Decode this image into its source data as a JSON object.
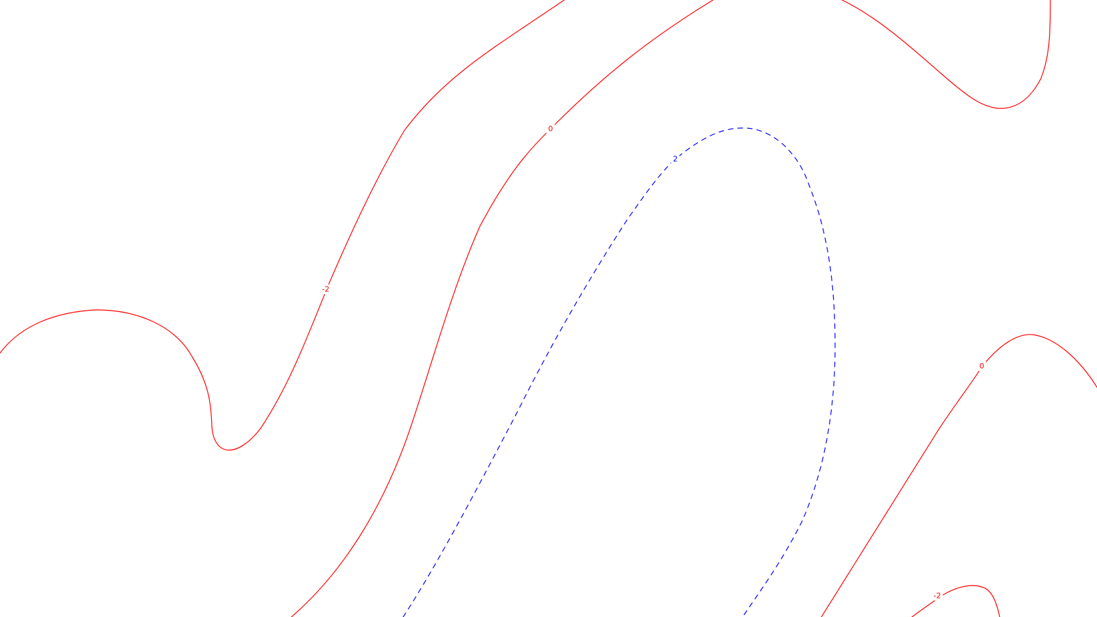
{
  "colors": {
    "background": "#ffffff",
    "negative_and_zero": "#ff0000",
    "positive": "#0000ff"
  },
  "contours": [
    {
      "id": "neg2-left",
      "level": -2,
      "label": "-2",
      "color": "#ff0000",
      "style": "solid"
    },
    {
      "id": "zero-main",
      "level": 0,
      "label": "0",
      "color": "#ff0000",
      "style": "solid"
    },
    {
      "id": "pos2-main",
      "level": 2,
      "label": "2",
      "color": "#0000ff",
      "style": "dashed"
    },
    {
      "id": "top-right-arc",
      "level": null,
      "label": "",
      "color": "#ff0000",
      "style": "solid"
    },
    {
      "id": "zero-right",
      "level": 0,
      "label": "0",
      "color": "#ff0000",
      "style": "solid"
    },
    {
      "id": "neg2-bottom-right",
      "level": -2,
      "label": "-2",
      "color": "#ff0000",
      "style": "solid"
    }
  ]
}
